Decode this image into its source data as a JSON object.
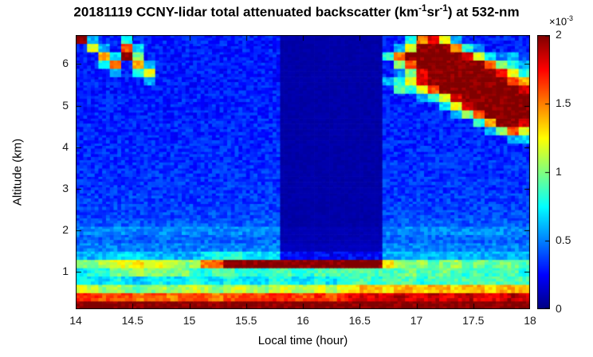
{
  "figure": {
    "title_parts": {
      "pre": "20181119 CCNY-lidar total attenuated backscatter (km",
      "sup1": "-1",
      "mid": "sr",
      "sup2": "-1",
      "post": ") at 532-nm"
    },
    "xlabel": "Local time (hour)",
    "ylabel": "Altitude (km)",
    "colorbar_label": {
      "base": "×10",
      "sup": "-3"
    }
  },
  "axes": {
    "x_ticks": [
      "14",
      "14.5",
      "15",
      "15.5",
      "16",
      "16.5",
      "17",
      "17.5",
      "18"
    ],
    "x_tick_values": [
      14,
      14.5,
      15,
      15.5,
      16,
      16.5,
      17,
      17.5,
      18
    ],
    "y_ticks": [
      "1",
      "2",
      "3",
      "4",
      "5",
      "6"
    ],
    "y_tick_values": [
      1,
      2,
      3,
      4,
      5,
      6
    ],
    "x_range": [
      14,
      18
    ],
    "y_range": [
      0.1,
      6.7
    ]
  },
  "colorbar": {
    "ticks": [
      "0",
      "0.5",
      "1",
      "1.5",
      "2"
    ],
    "tick_values": [
      0,
      0.5,
      1,
      1.5,
      2
    ],
    "range": [
      0,
      2
    ],
    "colormap": "jet"
  },
  "chart_data": {
    "type": "heatmap",
    "title": "20181119 CCNY-lidar total attenuated backscatter (km^-1 sr^-1) at 532-nm",
    "xlabel": "Local time (hour)",
    "ylabel": "Altitude (km)",
    "colormap": "jet",
    "xlim": [
      14,
      18
    ],
    "ylim": [
      0.1,
      6.7
    ],
    "clim": [
      0,
      2
    ],
    "value_unit": "1e-3 km^-1 sr^-1",
    "x_start": 14.05,
    "x_step": 0.1,
    "y_start": 0.2,
    "y_step": 0.2,
    "columns": 40,
    "rows": 33,
    "grid": [
      [
        2,
        2,
        2,
        2,
        2,
        2,
        2,
        2,
        2,
        2,
        2,
        2,
        2,
        2,
        2,
        2,
        2,
        2,
        2,
        2,
        2,
        2,
        2,
        2,
        2,
        2,
        2,
        2,
        2,
        2,
        2,
        2,
        2,
        2,
        2,
        2,
        2,
        2,
        2,
        2
      ],
      [
        1.7,
        1.7,
        1.6,
        1.6,
        1.6,
        1.5,
        1.6,
        1.6,
        1.5,
        1.6,
        1.6,
        1.6,
        1.5,
        1.6,
        1.6,
        1.6,
        1.6,
        1.7,
        1.7,
        1.6,
        1.6,
        1.7,
        1.6,
        1.7,
        1.8,
        1.8,
        1.8,
        1.8,
        1.9,
        1.8,
        1.8,
        1.9,
        1.8,
        1.8,
        1.9,
        1.8,
        1.8,
        1.8,
        1.9,
        1.8
      ],
      [
        1.2,
        1.1,
        1.0,
        1.1,
        1.0,
        0.9,
        1.0,
        1.1,
        1.0,
        1.1,
        1.2,
        1.1,
        1.0,
        1.1,
        1.2,
        1.1,
        1.0,
        1.1,
        1.2,
        1.1,
        1.1,
        1.2,
        1.1,
        1.2,
        1.3,
        1.4,
        1.4,
        1.3,
        1.4,
        1.4,
        1.3,
        1.4,
        1.4,
        1.3,
        1.4,
        1.4,
        1.3,
        1.4,
        1.4,
        1.4
      ],
      [
        0.8,
        0.7,
        0.7,
        0.8,
        0.7,
        0.6,
        0.7,
        0.8,
        0.7,
        0.7,
        0.8,
        0.7,
        0.7,
        0.8,
        0.7,
        0.7,
        0.7,
        0.8,
        0.8,
        0.7,
        0.7,
        0.8,
        0.7,
        0.8,
        0.9,
        0.9,
        0.8,
        0.9,
        0.9,
        0.9,
        0.8,
        0.9,
        0.9,
        0.9,
        0.9,
        0.9,
        0.9,
        0.9,
        0.9,
        0.9
      ],
      [
        0.7,
        0.8,
        0.8,
        1.0,
        1.0,
        1.1,
        1.0,
        1.0,
        1.0,
        1.0,
        0.8,
        0.8,
        0.9,
        0.9,
        0.8,
        0.8,
        0.8,
        0.9,
        0.9,
        0.8,
        0.8,
        0.9,
        0.9,
        0.9,
        0.9,
        0.9,
        0.9,
        0.9,
        0.9,
        1.0,
        0.9,
        0.9,
        1.0,
        0.9,
        0.8,
        0.9,
        0.8,
        0.9,
        0.9,
        0.8
      ],
      [
        1.0,
        1.0,
        1.1,
        1.2,
        1.2,
        1.3,
        1.2,
        1.2,
        1.1,
        1.0,
        1.1,
        1.5,
        1.6,
        2,
        2,
        2,
        2,
        2,
        2,
        2,
        2,
        2,
        2,
        2,
        2,
        2,
        2,
        1.3,
        1.1,
        1.0,
        1.1,
        0.9,
        1.0,
        1.1,
        0.9,
        1.0,
        0.9,
        1.0,
        1.0,
        0.9
      ],
      [
        0.6,
        0.6,
        0.6,
        0.7,
        0.7,
        0.7,
        0.6,
        0.6,
        0.6,
        0.6,
        0.6,
        0.7,
        0.8,
        0.8,
        0.8,
        0.7,
        0.7,
        0.7,
        0.25,
        0.25,
        0.25,
        0.25,
        0.25,
        0.25,
        0.25,
        0.25,
        0.25,
        0.6,
        0.6,
        0.6,
        0.6,
        0.6,
        0.6,
        0.6,
        0.6,
        0.6,
        0.6,
        0.6,
        0.6,
        0.6
      ],
      [
        0.5,
        0.5,
        0.5,
        0.5,
        0.5,
        0.5,
        0.5,
        0.5,
        0.5,
        0.5,
        0.5,
        0.5,
        0.5,
        0.5,
        0.5,
        0.5,
        0.5,
        0.5,
        0.12,
        0.12,
        0.12,
        0.12,
        0.12,
        0.12,
        0.12,
        0.12,
        0.12,
        0.5,
        0.5,
        0.5,
        0.5,
        0.5,
        0.5,
        0.5,
        0.5,
        0.5,
        0.5,
        0.5,
        0.5,
        0.5
      ],
      [
        0.45,
        0.45,
        0.45,
        0.45,
        0.45,
        0.45,
        0.45,
        0.45,
        0.45,
        0.45,
        0.45,
        0.45,
        0.45,
        0.45,
        0.45,
        0.45,
        0.45,
        0.45,
        0.1,
        0.1,
        0.1,
        0.1,
        0.1,
        0.1,
        0.1,
        0.1,
        0.1,
        0.45,
        0.45,
        0.45,
        0.45,
        0.45,
        0.45,
        0.45,
        0.45,
        0.45,
        0.45,
        0.45,
        0.45,
        0.45
      ],
      [
        0.52,
        0.52,
        0.52,
        0.52,
        0.52,
        0.52,
        0.52,
        0.52,
        0.52,
        0.52,
        0.52,
        0.52,
        0.52,
        0.52,
        0.52,
        0.52,
        0.52,
        0.52,
        0.1,
        0.1,
        0.1,
        0.1,
        0.1,
        0.1,
        0.1,
        0.1,
        0.1,
        0.52,
        0.52,
        0.52,
        0.52,
        0.52,
        0.52,
        0.52,
        0.52,
        0.52,
        0.52,
        0.52,
        0.52,
        0.52
      ],
      [
        0.42,
        0.42,
        0.42,
        0.42,
        0.42,
        0.42,
        0.42,
        0.42,
        0.42,
        0.42,
        0.42,
        0.42,
        0.42,
        0.42,
        0.42,
        0.42,
        0.42,
        0.42,
        0.08,
        0.08,
        0.08,
        0.08,
        0.08,
        0.08,
        0.08,
        0.08,
        0.08,
        0.42,
        0.42,
        0.42,
        0.42,
        0.42,
        0.42,
        0.42,
        0.42,
        0.42,
        0.42,
        0.42,
        0.42,
        0.42
      ],
      [
        0.38,
        0.38,
        0.38,
        0.38,
        0.38,
        0.38,
        0.38,
        0.38,
        0.38,
        0.38,
        0.38,
        0.38,
        0.38,
        0.38,
        0.38,
        0.38,
        0.38,
        0.38,
        0.08,
        0.08,
        0.08,
        0.08,
        0.08,
        0.08,
        0.08,
        0.08,
        0.08,
        0.38,
        0.38,
        0.38,
        0.38,
        0.38,
        0.38,
        0.38,
        0.38,
        0.38,
        0.38,
        0.38,
        0.38,
        0.38
      ],
      [
        0.37,
        0.37,
        0.37,
        0.37,
        0.37,
        0.37,
        0.37,
        0.37,
        0.37,
        0.37,
        0.37,
        0.37,
        0.37,
        0.37,
        0.37,
        0.37,
        0.37,
        0.37,
        0.08,
        0.08,
        0.08,
        0.08,
        0.08,
        0.08,
        0.08,
        0.08,
        0.08,
        0.37,
        0.37,
        0.37,
        0.37,
        0.37,
        0.37,
        0.37,
        0.37,
        0.37,
        0.37,
        0.37,
        0.37,
        0.37
      ],
      [
        0.36,
        0.36,
        0.36,
        0.36,
        0.36,
        0.36,
        0.36,
        0.36,
        0.36,
        0.36,
        0.36,
        0.36,
        0.36,
        0.36,
        0.36,
        0.36,
        0.36,
        0.36,
        0.08,
        0.08,
        0.08,
        0.08,
        0.08,
        0.08,
        0.08,
        0.08,
        0.08,
        0.36,
        0.36,
        0.36,
        0.36,
        0.36,
        0.36,
        0.36,
        0.36,
        0.36,
        0.36,
        0.36,
        0.36,
        0.36
      ],
      [
        0.35,
        0.35,
        0.35,
        0.35,
        0.35,
        0.35,
        0.35,
        0.35,
        0.35,
        0.35,
        0.35,
        0.35,
        0.35,
        0.35,
        0.35,
        0.35,
        0.35,
        0.35,
        0.08,
        0.08,
        0.08,
        0.08,
        0.08,
        0.08,
        0.08,
        0.08,
        0.08,
        0.35,
        0.35,
        0.35,
        0.35,
        0.35,
        0.35,
        0.35,
        0.35,
        0.35,
        0.35,
        0.35,
        0.35,
        0.35
      ],
      [
        0.35,
        0.35,
        0.35,
        0.35,
        0.35,
        0.35,
        0.35,
        0.35,
        0.35,
        0.35,
        0.35,
        0.35,
        0.35,
        0.35,
        0.35,
        0.35,
        0.35,
        0.35,
        0.08,
        0.08,
        0.08,
        0.08,
        0.08,
        0.08,
        0.08,
        0.08,
        0.08,
        0.35,
        0.35,
        0.35,
        0.35,
        0.35,
        0.35,
        0.35,
        0.35,
        0.35,
        0.35,
        0.35,
        0.35,
        0.35
      ],
      [
        0.34,
        0.34,
        0.34,
        0.34,
        0.34,
        0.34,
        0.34,
        0.34,
        0.34,
        0.34,
        0.34,
        0.34,
        0.34,
        0.34,
        0.34,
        0.34,
        0.34,
        0.34,
        0.08,
        0.08,
        0.08,
        0.08,
        0.08,
        0.08,
        0.08,
        0.08,
        0.08,
        0.34,
        0.34,
        0.34,
        0.34,
        0.34,
        0.34,
        0.34,
        0.34,
        0.34,
        0.34,
        0.34,
        0.34,
        0.34
      ],
      [
        0.34,
        0.34,
        0.34,
        0.34,
        0.34,
        0.34,
        0.34,
        0.34,
        0.34,
        0.34,
        0.34,
        0.34,
        0.34,
        0.34,
        0.34,
        0.34,
        0.34,
        0.34,
        0.08,
        0.08,
        0.08,
        0.08,
        0.08,
        0.08,
        0.08,
        0.08,
        0.08,
        0.34,
        0.34,
        0.34,
        0.34,
        0.34,
        0.34,
        0.34,
        0.34,
        0.34,
        0.34,
        0.34,
        0.34,
        0.34
      ],
      [
        0.33,
        0.33,
        0.33,
        0.33,
        0.33,
        0.33,
        0.33,
        0.33,
        0.33,
        0.33,
        0.33,
        0.33,
        0.33,
        0.33,
        0.33,
        0.33,
        0.33,
        0.33,
        0.08,
        0.08,
        0.08,
        0.08,
        0.08,
        0.08,
        0.08,
        0.08,
        0.08,
        0.33,
        0.33,
        0.33,
        0.33,
        0.33,
        0.33,
        0.33,
        0.33,
        0.33,
        0.33,
        0.33,
        0.33,
        0.33
      ],
      [
        0.33,
        0.33,
        0.33,
        0.33,
        0.33,
        0.33,
        0.33,
        0.33,
        0.33,
        0.33,
        0.33,
        0.33,
        0.33,
        0.33,
        0.33,
        0.33,
        0.33,
        0.33,
        0.08,
        0.08,
        0.08,
        0.08,
        0.08,
        0.08,
        0.08,
        0.08,
        0.08,
        0.33,
        0.33,
        0.33,
        0.33,
        0.33,
        0.33,
        0.33,
        0.33,
        0.33,
        0.33,
        0.33,
        0.33,
        0.33
      ],
      [
        0.32,
        0.32,
        0.32,
        0.32,
        0.32,
        0.32,
        0.32,
        0.32,
        0.32,
        0.32,
        0.32,
        0.32,
        0.32,
        0.32,
        0.32,
        0.32,
        0.32,
        0.32,
        0.08,
        0.08,
        0.08,
        0.08,
        0.08,
        0.08,
        0.08,
        0.08,
        0.08,
        0.32,
        0.32,
        0.32,
        0.32,
        0.32,
        0.32,
        0.32,
        0.32,
        0.32,
        0.32,
        0.32,
        0.6,
        0.7
      ],
      [
        0.32,
        0.32,
        0.32,
        0.32,
        0.32,
        0.32,
        0.32,
        0.32,
        0.32,
        0.32,
        0.32,
        0.32,
        0.32,
        0.32,
        0.32,
        0.32,
        0.32,
        0.32,
        0.08,
        0.08,
        0.08,
        0.08,
        0.08,
        0.08,
        0.08,
        0.08,
        0.08,
        0.32,
        0.32,
        0.32,
        0.32,
        0.32,
        0.32,
        0.32,
        0.32,
        0.32,
        0.6,
        1.0,
        1.6,
        1.2
      ],
      [
        0.32,
        0.32,
        0.32,
        0.32,
        0.32,
        0.32,
        0.32,
        0.32,
        0.32,
        0.32,
        0.32,
        0.32,
        0.32,
        0.32,
        0.32,
        0.32,
        0.32,
        0.32,
        0.08,
        0.08,
        0.08,
        0.08,
        0.08,
        0.08,
        0.08,
        0.08,
        0.08,
        0.32,
        0.32,
        0.32,
        0.32,
        0.32,
        0.32,
        0.32,
        0.32,
        0.8,
        1.4,
        2,
        2,
        1.8
      ],
      [
        0.31,
        0.31,
        0.31,
        0.31,
        0.31,
        0.31,
        0.31,
        0.31,
        0.31,
        0.31,
        0.31,
        0.31,
        0.31,
        0.31,
        0.31,
        0.31,
        0.31,
        0.31,
        0.08,
        0.08,
        0.08,
        0.08,
        0.08,
        0.08,
        0.08,
        0.08,
        0.08,
        0.31,
        0.31,
        0.31,
        0.31,
        0.31,
        0.31,
        0.6,
        1.0,
        1.6,
        2,
        2,
        2,
        2
      ],
      [
        0.31,
        0.31,
        0.31,
        0.31,
        0.31,
        0.31,
        0.31,
        0.31,
        0.31,
        0.31,
        0.31,
        0.31,
        0.31,
        0.31,
        0.31,
        0.31,
        0.31,
        0.31,
        0.08,
        0.08,
        0.08,
        0.08,
        0.08,
        0.08,
        0.08,
        0.08,
        0.08,
        0.31,
        0.31,
        0.31,
        0.31,
        0.31,
        0.7,
        1.2,
        1.8,
        2,
        2,
        2,
        2,
        2
      ],
      [
        0.31,
        0.31,
        0.31,
        0.31,
        0.31,
        0.31,
        0.31,
        0.31,
        0.31,
        0.31,
        0.31,
        0.31,
        0.31,
        0.31,
        0.31,
        0.31,
        0.31,
        0.31,
        0.08,
        0.08,
        0.08,
        0.08,
        0.08,
        0.08,
        0.08,
        0.08,
        0.08,
        0.31,
        0.31,
        0.31,
        0.6,
        0.8,
        1.2,
        1.8,
        2,
        2,
        2,
        2,
        2,
        2
      ],
      [
        0.3,
        0.3,
        0.3,
        0.3,
        0.3,
        0.3,
        0.3,
        0.3,
        0.3,
        0.3,
        0.3,
        0.3,
        0.3,
        0.3,
        0.3,
        0.3,
        0.3,
        0.3,
        0.08,
        0.08,
        0.08,
        0.08,
        0.08,
        0.08,
        0.08,
        0.08,
        0.08,
        0.3,
        0.9,
        0.8,
        1.2,
        1.6,
        2,
        2,
        2,
        2,
        2,
        2,
        2,
        1.8
      ],
      [
        0.3,
        0.3,
        0.3,
        0.3,
        0.3,
        0.3,
        0.6,
        0.3,
        0.3,
        0.3,
        0.3,
        0.3,
        0.3,
        0.3,
        0.3,
        0.3,
        0.3,
        0.3,
        0.08,
        0.08,
        0.08,
        0.08,
        0.08,
        0.08,
        0.08,
        0.08,
        0.08,
        0.6,
        0.8,
        1.2,
        1.8,
        2,
        2,
        2,
        2,
        2,
        2,
        2,
        1.6,
        1.4
      ],
      [
        0.3,
        0.3,
        0.3,
        0.6,
        0.3,
        0.8,
        1.2,
        0.3,
        0.3,
        0.3,
        0.3,
        0.3,
        0.3,
        0.3,
        0.3,
        0.3,
        0.3,
        0.3,
        0.08,
        0.08,
        0.08,
        0.08,
        0.08,
        0.08,
        0.08,
        0.08,
        0.08,
        0.3,
        0.5,
        1.0,
        1.8,
        2,
        2,
        2,
        2,
        2,
        2,
        1.8,
        1.2,
        0.8
      ],
      [
        0.3,
        0.3,
        0.8,
        1.6,
        0.3,
        1.4,
        0.6,
        0.3,
        0.3,
        0.3,
        0.3,
        0.3,
        0.3,
        0.3,
        0.3,
        0.3,
        0.3,
        0.3,
        0.08,
        0.08,
        0.08,
        0.08,
        0.08,
        0.08,
        0.08,
        0.08,
        0.08,
        0.3,
        1.0,
        1.6,
        2,
        2,
        2,
        2,
        2,
        2,
        1.6,
        1.0,
        0.8,
        0.6
      ],
      [
        0.3,
        0.3,
        1.4,
        0.7,
        2,
        1.0,
        0.3,
        0.3,
        0.3,
        0.3,
        0.3,
        0.3,
        0.3,
        0.3,
        0.3,
        0.3,
        0.3,
        0.3,
        0.08,
        0.08,
        0.08,
        0.08,
        0.08,
        0.08,
        0.08,
        0.08,
        0.08,
        0.8,
        1.5,
        2,
        2,
        2,
        2,
        2,
        1.8,
        1.2,
        0.7,
        0.5,
        0.6,
        0.4
      ],
      [
        0.3,
        1.2,
        0.6,
        0.3,
        1.6,
        0.7,
        0.3,
        0.3,
        0.3,
        0.3,
        0.3,
        0.3,
        0.3,
        0.3,
        0.3,
        0.3,
        0.3,
        0.3,
        0.08,
        0.08,
        0.08,
        0.08,
        0.08,
        0.08,
        0.08,
        0.08,
        0.08,
        0.3,
        0.6,
        1.2,
        2,
        2,
        2,
        1.5,
        0.8,
        0.5,
        0.3,
        0.3,
        0.3,
        0.3
      ],
      [
        2,
        0.6,
        0.3,
        0.3,
        0.8,
        0.3,
        0.3,
        0.3,
        0.3,
        0.3,
        0.3,
        0.3,
        0.3,
        0.3,
        0.3,
        0.3,
        0.3,
        0.3,
        0.08,
        0.08,
        0.08,
        0.08,
        0.08,
        0.08,
        0.08,
        0.08,
        0.08,
        0.3,
        0.3,
        0.8,
        1.5,
        1.8,
        1.2,
        0.6,
        0.3,
        0.3,
        0.3,
        0.3,
        0.3,
        0.3
      ]
    ]
  }
}
